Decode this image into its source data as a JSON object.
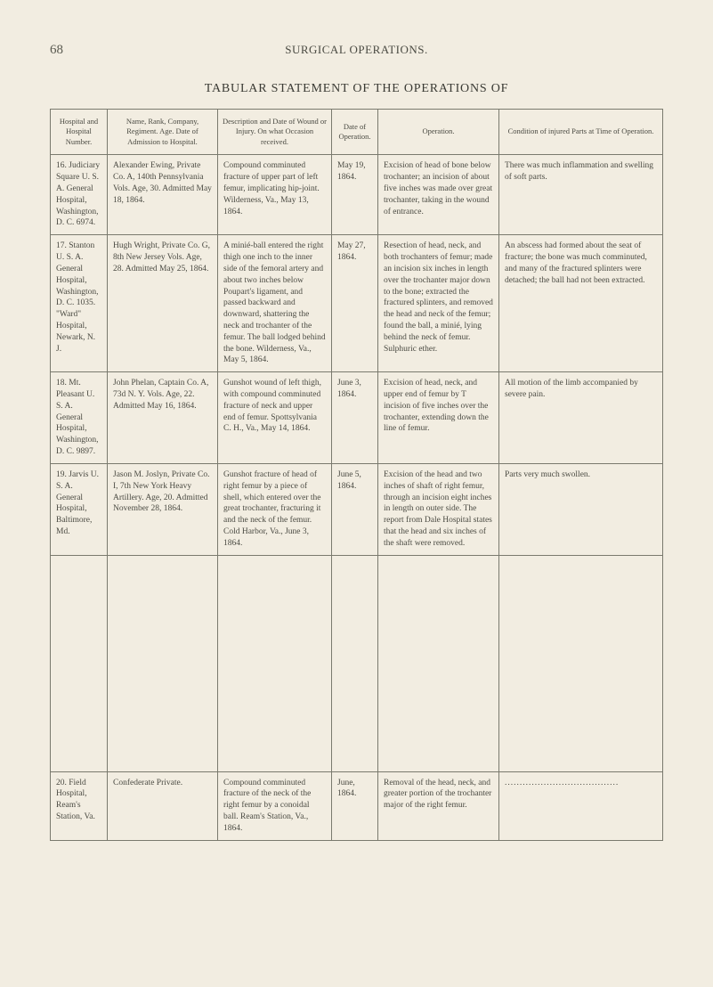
{
  "page_number": "68",
  "running_head": "SURGICAL OPERATIONS.",
  "table_title": "TABULAR STATEMENT OF THE OPERATIONS OF",
  "columns": {
    "hospital": "Hospital and Hospital Number.",
    "name": "Name, Rank, Company, Regiment. Age. Date of Admission to Hospital.",
    "wound": "Description and Date of Wound or Injury. On what Occasion received.",
    "date": "Date of Operation.",
    "operation": "Operation.",
    "condition": "Condition of injured Parts at Time of Operation."
  },
  "rows": [
    {
      "hospital": "16. Judiciary Square U. S. A. General Hospital, Washington, D. C. 6974.",
      "name": "Alexander Ewing, Private Co. A, 140th Pennsylvania Vols. Age, 30. Admitted May 18, 1864.",
      "wound": "Compound comminuted fracture of upper part of left femur, implicating hip-joint. Wilderness, Va., May 13, 1864.",
      "date": "May 19, 1864.",
      "operation": "Excision of head of bone below trochanter; an incision of about five inches was made over great trochanter, taking in the wound of entrance.",
      "condition": "There was much inflammation and swelling of soft parts."
    },
    {
      "hospital": "17. Stanton U. S. A. General Hospital, Washington, D. C. 1035. \"Ward\" Hospital, Newark, N. J.",
      "name": "Hugh Wright, Private Co. G, 8th New Jersey Vols. Age, 28. Admitted May 25, 1864.",
      "wound": "A minié-ball entered the right thigh one inch to the inner side of the femoral artery and about two inches below Poupart's ligament, and passed backward and downward, shattering the neck and trochanter of the femur. The ball lodged behind the bone. Wilderness, Va., May 5, 1864.",
      "date": "May 27, 1864.",
      "operation": "Resection of head, neck, and both trochanters of femur; made an incision six inches in length over the trochanter major down to the bone; extracted the fractured splinters, and removed the head and neck of the femur; found the ball, a minié, lying behind the neck of femur. Sulphuric ether.",
      "condition": "An abscess had formed about the seat of fracture; the bone was much comminuted, and many of the fractured splinters were detached; the ball had not been extracted."
    },
    {
      "hospital": "18. Mt. Pleasant U. S. A. General Hospital, Washington, D. C. 9897.",
      "name": "John Phelan, Captain Co. A, 73d N. Y. Vols. Age, 22. Admitted May 16, 1864.",
      "wound": "Gunshot wound of left thigh, with compound comminuted fracture of neck and upper end of femur. Spottsylvania C. H., Va., May 14, 1864.",
      "date": "June 3, 1864.",
      "operation": "Excision of head, neck, and upper end of femur by T incision of five inches over the trochanter, extending down the line of femur.",
      "condition": "All motion of the limb accompanied by severe pain."
    },
    {
      "hospital": "19. Jarvis U. S. A. General Hospital, Baltimore, Md.",
      "name": "Jason M. Joslyn, Private Co. I, 7th New York Heavy Artillery. Age, 20. Admitted November 28, 1864.",
      "wound": "Gunshot fracture of head of right femur by a piece of shell, which entered over the great trochanter, fracturing it and the neck of the femur. Cold Harbor, Va., June 3, 1864.",
      "date": "June 5, 1864.",
      "operation": "Excision of the head and two inches of shaft of right femur, through an incision eight inches in length on outer side. The report from Dale Hospital states that the head and six inches of the shaft were removed.",
      "condition": "Parts very much swollen."
    },
    {
      "hospital": "20. Field Hospital, Ream's Station, Va.",
      "name": "Confederate Private.",
      "wound": "Compound comminuted fracture of the neck of the right femur by a conoidal ball. Ream's Station, Va., 1864.",
      "date": "June, 1864.",
      "operation": "Removal of the head, neck, and greater portion of the trochanter major of the right femur.",
      "condition": "......................................"
    }
  ]
}
